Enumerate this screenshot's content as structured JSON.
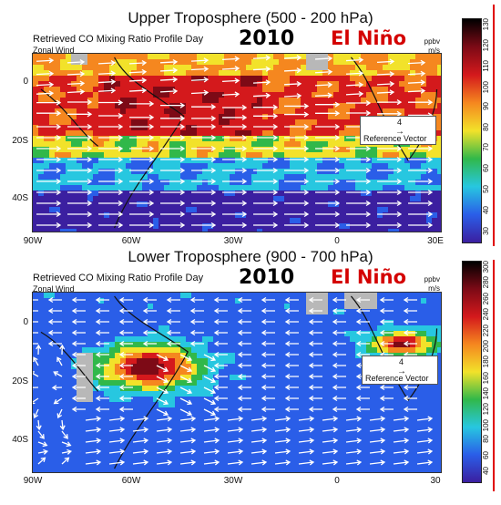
{
  "upper": {
    "title": "Upper Troposphere (500 - 200 hPa)",
    "subtitle": "Retrieved CO Mixing Ratio Profile Day",
    "wind_label": "Zonal Wind",
    "year": "2010",
    "event": "El Niño",
    "unit_top": "ppbv",
    "unit_bottom": "m/s",
    "ref_value": "4",
    "ref_label": "Reference Vector",
    "y_ticks": [
      "0",
      "20S",
      "40S"
    ],
    "x_ticks": [
      "90W",
      "60W",
      "30W",
      "0",
      "30E"
    ],
    "colorbar_ticks": [
      "30",
      "40",
      "50",
      "60",
      "70",
      "80",
      "90",
      "100",
      "110",
      "120",
      "130"
    ]
  },
  "lower": {
    "title": "Lower Troposphere (900 - 700 hPa)",
    "subtitle": "Retrieved CO Mixing Ratio Profile Day",
    "wind_label": "Zonal Wind",
    "year": "2010",
    "event": "El Niño",
    "unit_top": "ppbv",
    "unit_bottom": "m/s",
    "ref_value": "4",
    "ref_label": "Reference Vector",
    "y_ticks": [
      "0",
      "20S",
      "40S"
    ],
    "x_ticks": [
      "90W",
      "60W",
      "30W",
      "0",
      "30"
    ],
    "colorbar_ticks": [
      "40",
      "60",
      "80",
      "100",
      "120",
      "140",
      "160",
      "180",
      "200",
      "220",
      "240",
      "260",
      "280",
      "300"
    ]
  },
  "colors": {
    "low": "#3b1fa0",
    "mid_blue": "#2a5ee8",
    "cyan": "#27c7e0",
    "green": "#31b84a",
    "yellow": "#f2e22a",
    "orange": "#f5871f",
    "red": "#d4191c",
    "dark_red": "#7d0a16",
    "land_mask": "#b8b8b8",
    "title_red": "#d40000"
  }
}
